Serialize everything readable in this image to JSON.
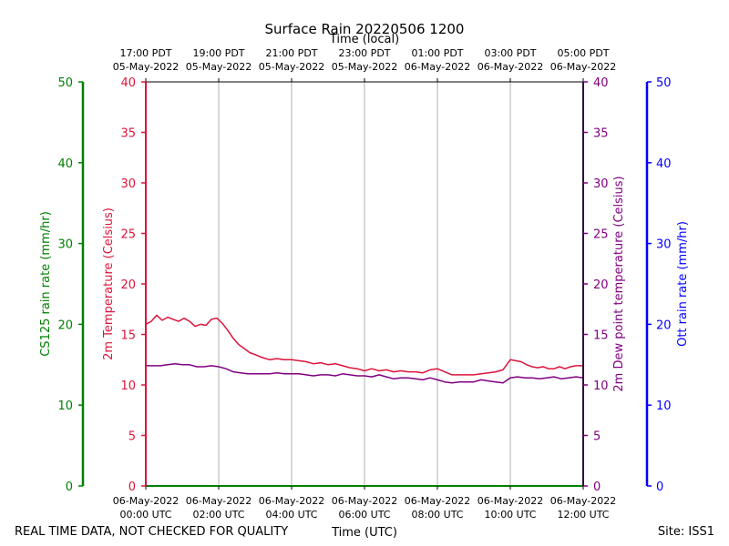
{
  "chart_data": {
    "type": "line",
    "title": "Surface Rain 20220506 1200",
    "top_xlabel": "Time (local)",
    "xlabel": "Time (UTC)",
    "footer_left": "REAL TIME DATA, NOT CHECKED FOR QUALITY",
    "footer_right": "Site: ISS1",
    "xlim_hours": [
      0,
      12
    ],
    "x_ticks": [
      {
        "hour": 0,
        "bottom_date": "06-May-2022",
        "bottom_time": "00:00 UTC",
        "top_time": "17:00 PDT",
        "top_date": "05-May-2022"
      },
      {
        "hour": 2,
        "bottom_date": "06-May-2022",
        "bottom_time": "02:00 UTC",
        "top_time": "19:00 PDT",
        "top_date": "05-May-2022"
      },
      {
        "hour": 4,
        "bottom_date": "06-May-2022",
        "bottom_time": "04:00 UTC",
        "top_time": "21:00 PDT",
        "top_date": "05-May-2022"
      },
      {
        "hour": 6,
        "bottom_date": "06-May-2022",
        "bottom_time": "06:00 UTC",
        "top_time": "23:00 PDT",
        "top_date": "05-May-2022"
      },
      {
        "hour": 8,
        "bottom_date": "06-May-2022",
        "bottom_time": "08:00 UTC",
        "top_time": "01:00 PDT",
        "top_date": "06-May-2022"
      },
      {
        "hour": 10,
        "bottom_date": "06-May-2022",
        "bottom_time": "10:00 UTC",
        "top_time": "03:00 PDT",
        "top_date": "06-May-2022"
      },
      {
        "hour": 12,
        "bottom_date": "06-May-2022",
        "bottom_time": "12:00 UTC",
        "top_time": "05:00 PDT",
        "top_date": "06-May-2022"
      }
    ],
    "axes": {
      "cs125": {
        "label": "CS125 rain rate (mm/hr)",
        "ylim": [
          0,
          50
        ],
        "ticks": [
          0,
          10,
          20,
          30,
          40,
          50
        ],
        "color": "#008000"
      },
      "temp": {
        "label": "2m Temperature (Celsius)",
        "ylim": [
          0,
          40
        ],
        "ticks": [
          0,
          5,
          10,
          15,
          20,
          25,
          30,
          35,
          40
        ],
        "color": "#dc143c"
      },
      "dew": {
        "label": "2m Dew point temperature (Celsius)",
        "ylim": [
          0,
          40
        ],
        "ticks": [
          0,
          5,
          10,
          15,
          20,
          25,
          30,
          35,
          40
        ],
        "color": "#800080"
      },
      "ott": {
        "label": "Ott rain rate (mm/hr)",
        "ylim": [
          0,
          50
        ],
        "ticks": [
          0,
          10,
          20,
          30,
          40,
          50
        ],
        "color": "#0000ff"
      }
    },
    "series": [
      {
        "name": "2m Temperature",
        "axis": "temp",
        "color": "#dc143c",
        "x": [
          0,
          0.15,
          0.3,
          0.45,
          0.6,
          0.75,
          0.9,
          1.05,
          1.2,
          1.35,
          1.5,
          1.65,
          1.8,
          1.95,
          2.1,
          2.25,
          2.4,
          2.55,
          2.7,
          2.85,
          3.0,
          3.2,
          3.4,
          3.6,
          3.8,
          4.0,
          4.2,
          4.4,
          4.6,
          4.8,
          5.0,
          5.2,
          5.4,
          5.6,
          5.8,
          6.0,
          6.2,
          6.4,
          6.6,
          6.8,
          7.0,
          7.2,
          7.4,
          7.6,
          7.8,
          8.0,
          8.2,
          8.4,
          8.6,
          8.8,
          9.0,
          9.2,
          9.4,
          9.6,
          9.8,
          9.9,
          10.0,
          10.15,
          10.3,
          10.45,
          10.6,
          10.75,
          10.9,
          11.05,
          11.2,
          11.35,
          11.5,
          11.65,
          11.8,
          12.0
        ],
        "values": [
          16.0,
          16.3,
          16.9,
          16.4,
          16.7,
          16.5,
          16.3,
          16.6,
          16.3,
          15.8,
          16.0,
          15.9,
          16.5,
          16.6,
          16.1,
          15.4,
          14.6,
          14.0,
          13.6,
          13.2,
          13.0,
          12.7,
          12.5,
          12.6,
          12.5,
          12.5,
          12.4,
          12.3,
          12.1,
          12.2,
          12.0,
          12.1,
          11.9,
          11.7,
          11.6,
          11.4,
          11.6,
          11.4,
          11.5,
          11.3,
          11.4,
          11.3,
          11.3,
          11.2,
          11.5,
          11.6,
          11.3,
          11.0,
          11.0,
          11.0,
          11.0,
          11.1,
          11.2,
          11.3,
          11.5,
          12.0,
          12.5,
          12.4,
          12.3,
          12.0,
          11.8,
          11.7,
          11.8,
          11.6,
          11.6,
          11.8,
          11.6,
          11.8,
          11.9,
          11.9
        ]
      },
      {
        "name": "2m Dew point temperature",
        "axis": "dew",
        "color": "#800080",
        "x": [
          0,
          0.2,
          0.4,
          0.6,
          0.8,
          1.0,
          1.2,
          1.4,
          1.6,
          1.8,
          2.0,
          2.2,
          2.4,
          2.6,
          2.8,
          3.0,
          3.2,
          3.4,
          3.6,
          3.8,
          4.0,
          4.2,
          4.4,
          4.6,
          4.8,
          5.0,
          5.2,
          5.4,
          5.6,
          5.8,
          6.0,
          6.2,
          6.4,
          6.6,
          6.8,
          7.0,
          7.2,
          7.4,
          7.6,
          7.8,
          8.0,
          8.2,
          8.4,
          8.6,
          8.8,
          9.0,
          9.2,
          9.4,
          9.6,
          9.8,
          10.0,
          10.2,
          10.4,
          10.6,
          10.8,
          11.0,
          11.2,
          11.4,
          11.6,
          11.8,
          12.0
        ],
        "values": [
          11.9,
          11.9,
          11.9,
          12.0,
          12.1,
          12.0,
          12.0,
          11.8,
          11.8,
          11.9,
          11.8,
          11.6,
          11.3,
          11.2,
          11.1,
          11.1,
          11.1,
          11.1,
          11.2,
          11.1,
          11.1,
          11.1,
          11.0,
          10.9,
          11.0,
          11.0,
          10.9,
          11.1,
          11.0,
          10.9,
          10.9,
          10.8,
          11.0,
          10.8,
          10.6,
          10.7,
          10.7,
          10.6,
          10.5,
          10.7,
          10.5,
          10.3,
          10.2,
          10.3,
          10.3,
          10.3,
          10.5,
          10.4,
          10.3,
          10.2,
          10.7,
          10.8,
          10.7,
          10.7,
          10.6,
          10.7,
          10.8,
          10.6,
          10.7,
          10.8,
          10.7
        ]
      }
    ]
  }
}
